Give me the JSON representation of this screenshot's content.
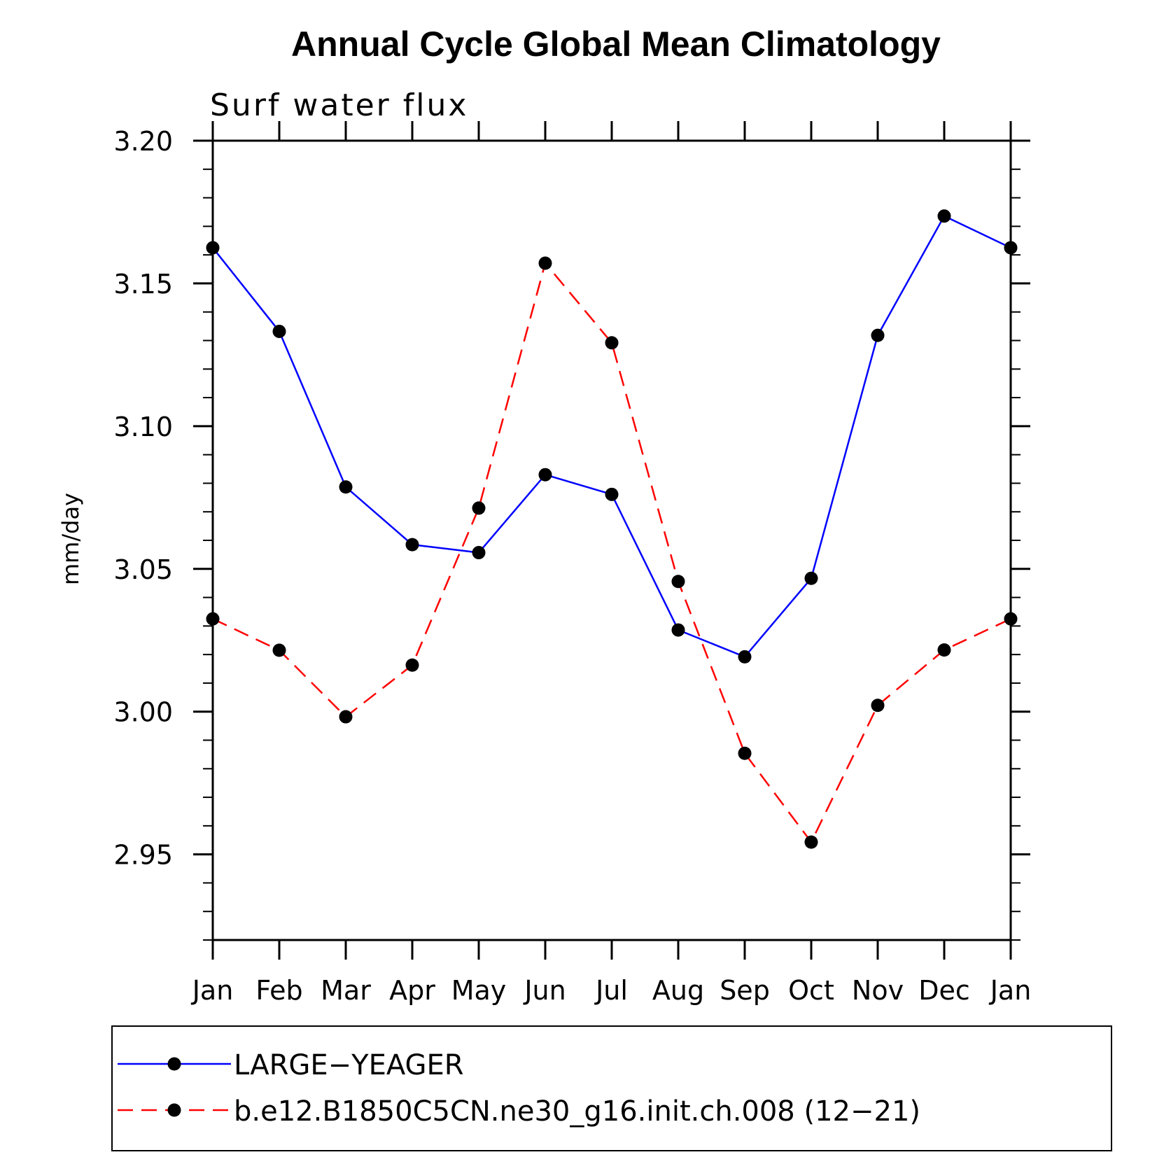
{
  "chart_data": {
    "type": "line",
    "title": "Annual Cycle Global Mean Climatology",
    "subtitle": "Surf water flux",
    "xlabel": "",
    "ylabel": "mm/day",
    "categories": [
      "Jan",
      "Feb",
      "Mar",
      "Apr",
      "May",
      "Jun",
      "Jul",
      "Aug",
      "Sep",
      "Oct",
      "Nov",
      "Dec",
      "Jan"
    ],
    "ylim": [
      2.92,
      3.2
    ],
    "yticks": [
      "2.95",
      "3.00",
      "3.05",
      "3.10",
      "3.15",
      "3.20"
    ],
    "legend_position": "bottom",
    "series": [
      {
        "name": "LARGE−YEAGER",
        "color": "#0000ff",
        "style": "solid",
        "values": [
          3.1625,
          3.1332,
          3.0787,
          3.0585,
          3.0557,
          3.083,
          3.0761,
          3.0286,
          3.0192,
          3.0467,
          3.1318,
          3.1736,
          3.1625
        ]
      },
      {
        "name": "b.e12.B1850C5CN.ne30_g16.init.ch.008 (12−21)",
        "color": "#ff0000",
        "style": "dashed",
        "values": [
          3.0325,
          3.0215,
          2.9982,
          3.0163,
          3.0713,
          3.1571,
          3.1292,
          3.0456,
          2.9854,
          2.9543,
          3.0022,
          3.0216,
          3.0325
        ]
      }
    ]
  }
}
